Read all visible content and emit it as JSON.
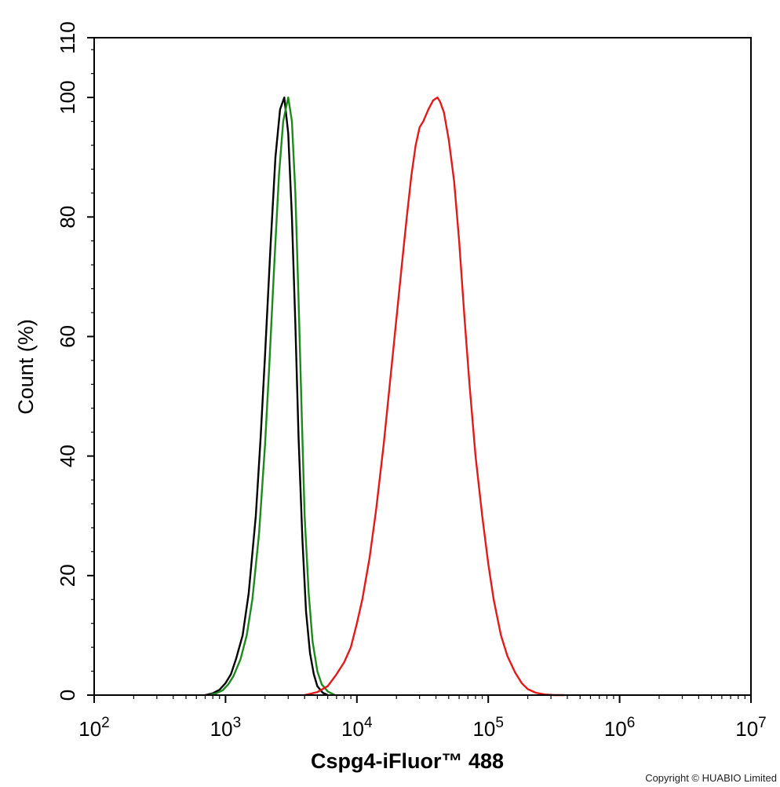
{
  "chart_data": {
    "type": "line",
    "xlabel": "Cspg4-iFluor™ 488",
    "ylabel": "Count  (%)",
    "xscale": "log",
    "xlim": [
      100,
      10000000
    ],
    "ylim": [
      0,
      110
    ],
    "x_ticks": [
      {
        "value": 100,
        "base": "10",
        "exp": "2"
      },
      {
        "value": 1000,
        "base": "10",
        "exp": "3"
      },
      {
        "value": 10000,
        "base": "10",
        "exp": "4"
      },
      {
        "value": 100000,
        "base": "10",
        "exp": "5"
      },
      {
        "value": 1000000,
        "base": "10",
        "exp": "6"
      },
      {
        "value": 10000000,
        "base": "10",
        "exp": "7"
      }
    ],
    "y_ticks": [
      {
        "value": 0,
        "label": "0"
      },
      {
        "value": 20,
        "label": "20"
      },
      {
        "value": 40,
        "label": "40"
      },
      {
        "value": 60,
        "label": "60"
      },
      {
        "value": 80,
        "label": "80"
      },
      {
        "value": 100,
        "label": "100"
      },
      {
        "value": 110,
        "label": "110"
      }
    ],
    "grid": false,
    "series": [
      {
        "color": "#000000",
        "x": [
          700,
          800,
          900,
          1000,
          1100,
          1200,
          1350,
          1500,
          1700,
          1850,
          2000,
          2200,
          2400,
          2600,
          2800,
          3000,
          3200,
          3400,
          3600,
          3850,
          4100,
          4400,
          4700,
          5000,
          5500,
          6000
        ],
        "y": [
          0,
          0.3,
          0.9,
          2,
          3.5,
          6,
          10,
          17,
          30,
          43,
          57,
          75,
          90,
          98,
          100,
          94,
          80,
          62,
          43,
          26,
          14,
          7,
          3.5,
          1.5,
          0.4,
          0
        ]
      },
      {
        "color": "#1e8a1e",
        "x": [
          750,
          850,
          950,
          1050,
          1150,
          1300,
          1450,
          1600,
          1800,
          2000,
          2150,
          2350,
          2550,
          2750,
          3000,
          3200,
          3400,
          3600,
          3800,
          4000,
          4300,
          4600,
          5000,
          5400,
          6000,
          6800
        ],
        "y": [
          0,
          0.3,
          0.8,
          1.8,
          3.2,
          6,
          10,
          16,
          27,
          42,
          55,
          72,
          87,
          96,
          100,
          96,
          84,
          66,
          47,
          30,
          17,
          9,
          4,
          1.8,
          0.6,
          0
        ]
      },
      {
        "color": "#e31a1a",
        "x": [
          4000,
          5000,
          6000,
          7000,
          8000,
          9000,
          10000,
          11000,
          12500,
          14000,
          16000,
          18000,
          20000,
          22000,
          24000,
          26000,
          28000,
          30000,
          32000,
          35000,
          38000,
          41000,
          43000,
          46000,
          50000,
          55000,
          60000,
          66000,
          72000,
          80000,
          90000,
          100000,
          110000,
          125000,
          140000,
          160000,
          180000,
          200000,
          230000,
          270000,
          320000,
          380000
        ],
        "y": [
          0,
          0.5,
          1.5,
          3.5,
          5.5,
          8,
          12,
          16,
          23,
          31,
          42,
          53,
          63,
          72,
          80,
          87,
          92,
          95,
          96,
          98,
          99.5,
          100,
          99.3,
          97.5,
          93,
          86,
          76,
          63,
          52,
          40,
          30,
          22,
          16,
          10,
          6.5,
          3.8,
          2,
          1,
          0.4,
          0.1,
          0,
          0
        ]
      }
    ]
  },
  "footer": {
    "copyright": "Copyright © HUABIO Limited"
  }
}
